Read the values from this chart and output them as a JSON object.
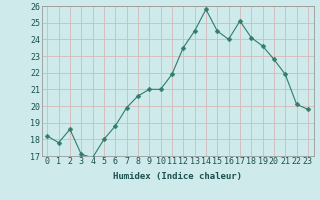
{
  "x": [
    0,
    1,
    2,
    3,
    4,
    5,
    6,
    7,
    8,
    9,
    10,
    11,
    12,
    13,
    14,
    15,
    16,
    17,
    18,
    19,
    20,
    21,
    22,
    23
  ],
  "y": [
    18.2,
    17.8,
    18.6,
    17.1,
    16.9,
    18.0,
    18.8,
    19.9,
    20.6,
    21.0,
    21.0,
    21.9,
    23.5,
    24.5,
    25.8,
    24.5,
    24.0,
    25.1,
    24.1,
    23.6,
    22.8,
    21.9,
    20.1,
    19.8
  ],
  "xlabel": "Humidex (Indice chaleur)",
  "ylabel": "",
  "ylim": [
    17,
    26
  ],
  "xlim": [
    -0.5,
    23.5
  ],
  "yticks": [
    17,
    18,
    19,
    20,
    21,
    22,
    23,
    24,
    25,
    26
  ],
  "xticks": [
    0,
    1,
    2,
    3,
    4,
    5,
    6,
    7,
    8,
    9,
    10,
    11,
    12,
    13,
    14,
    15,
    16,
    17,
    18,
    19,
    20,
    21,
    22,
    23
  ],
  "line_color": "#2e7d6e",
  "marker": "D",
  "marker_size": 2.5,
  "bg_color": "#ceeaea",
  "grid_color": "#d4b8b8",
  "spine_color": "#999999",
  "label_fontsize": 6.5,
  "tick_fontsize": 6.0
}
